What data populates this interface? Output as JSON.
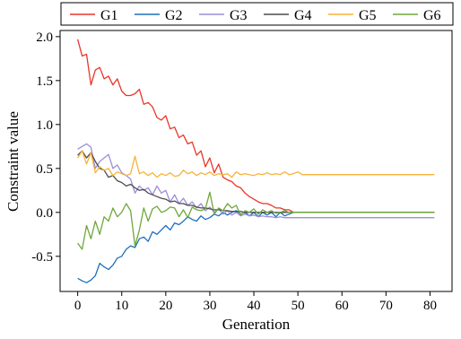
{
  "chart_data": {
    "type": "line",
    "xlabel": "Generation",
    "ylabel": "Constraint value",
    "xlim": [
      -4,
      85
    ],
    "ylim": [
      -0.9,
      2.07
    ],
    "xticks": [
      0,
      10,
      20,
      30,
      40,
      50,
      60,
      70,
      80
    ],
    "yticks": [
      -0.5,
      0.0,
      0.5,
      1.0,
      1.5,
      2.0
    ],
    "ytick_labels": [
      "-0.5",
      "0.0",
      "0.5",
      "1.0",
      "1.5",
      "2.0"
    ],
    "legend_position": "top, outside plot area",
    "grid": false,
    "series": [
      {
        "name": "G1",
        "color": "#e8372a",
        "x": [
          0,
          1,
          2,
          3,
          4,
          5,
          6,
          7,
          8,
          9,
          10,
          11,
          12,
          13,
          14,
          15,
          16,
          17,
          18,
          19,
          20,
          21,
          22,
          23,
          24,
          25,
          26,
          27,
          28,
          29,
          30,
          31,
          32,
          33,
          34,
          35,
          36,
          37,
          38,
          39,
          40,
          41,
          42,
          43,
          44,
          45,
          46,
          47,
          48,
          49,
          50,
          51,
          52,
          53,
          54,
          55,
          56,
          57,
          58,
          59,
          60,
          61,
          62,
          63,
          64,
          65,
          66,
          67,
          68,
          69,
          70,
          71,
          72,
          73,
          74,
          75,
          76,
          77,
          78,
          79,
          80,
          81
        ],
        "y": [
          1.97,
          1.78,
          1.8,
          1.45,
          1.62,
          1.65,
          1.52,
          1.55,
          1.45,
          1.52,
          1.38,
          1.33,
          1.33,
          1.35,
          1.4,
          1.23,
          1.25,
          1.2,
          1.08,
          1.05,
          1.1,
          0.95,
          0.97,
          0.85,
          0.88,
          0.78,
          0.8,
          0.65,
          0.7,
          0.52,
          0.62,
          0.45,
          0.55,
          0.4,
          0.37,
          0.35,
          0.3,
          0.28,
          0.22,
          0.18,
          0.15,
          0.12,
          0.1,
          0.1,
          0.08,
          0.05,
          0.05,
          0.03,
          0.03,
          0.0,
          0.0,
          0.0,
          0.0,
          0.0,
          0.0,
          0.0,
          0.0,
          0.0,
          0.0,
          0.0,
          0.0,
          0.0,
          0.0,
          0.0,
          0.0,
          0.0,
          0.0,
          0.0,
          0.0,
          0.0,
          0.0,
          0.0,
          0.0,
          0.0,
          0.0,
          0.0,
          0.0,
          0.0,
          0.0,
          0.0,
          0.0,
          0.0
        ]
      },
      {
        "name": "G2",
        "color": "#1f6fbd",
        "x": [
          0,
          1,
          2,
          3,
          4,
          5,
          6,
          7,
          8,
          9,
          10,
          11,
          12,
          13,
          14,
          15,
          16,
          17,
          18,
          19,
          20,
          21,
          22,
          23,
          24,
          25,
          26,
          27,
          28,
          29,
          30,
          31,
          32,
          33,
          34,
          35,
          36,
          37,
          38,
          39,
          40,
          41,
          42,
          43,
          44,
          45,
          46,
          47,
          48,
          49,
          50,
          51,
          52,
          53,
          54,
          55,
          56,
          57,
          58,
          59,
          60,
          61,
          62,
          63,
          64,
          65,
          66,
          67,
          68,
          69,
          70,
          71,
          72,
          73,
          74,
          75,
          76,
          77,
          78,
          79,
          80,
          81
        ],
        "y": [
          -0.75,
          -0.78,
          -0.8,
          -0.77,
          -0.72,
          -0.58,
          -0.62,
          -0.65,
          -0.6,
          -0.52,
          -0.5,
          -0.42,
          -0.38,
          -0.4,
          -0.3,
          -0.28,
          -0.33,
          -0.22,
          -0.25,
          -0.2,
          -0.15,
          -0.2,
          -0.12,
          -0.14,
          -0.1,
          -0.05,
          -0.08,
          -0.1,
          -0.04,
          -0.08,
          -0.06,
          -0.02,
          -0.04,
          0.0,
          -0.03,
          0.0,
          0.02,
          -0.02,
          0.0,
          -0.04,
          0.0,
          -0.05,
          0.0,
          -0.03,
          0.0,
          -0.05,
          0.0,
          -0.04,
          -0.02,
          0.0,
          0.0,
          0.0,
          0.0,
          0.0,
          0.0,
          0.0,
          0.0,
          0.0,
          0.0,
          0.0,
          0.0,
          0.0,
          0.0,
          0.0,
          0.0,
          0.0,
          0.0,
          0.0,
          0.0,
          0.0,
          0.0,
          0.0,
          0.0,
          0.0,
          0.0,
          0.0,
          0.0,
          0.0,
          0.0,
          0.0,
          0.0,
          0.0
        ]
      },
      {
        "name": "G3",
        "color": "#9a8fd8",
        "x": [
          0,
          1,
          2,
          3,
          4,
          5,
          6,
          7,
          8,
          9,
          10,
          11,
          12,
          13,
          14,
          15,
          16,
          17,
          18,
          19,
          20,
          21,
          22,
          23,
          24,
          25,
          26,
          27,
          28,
          29,
          30,
          31,
          32,
          33,
          34,
          35,
          36,
          37,
          38,
          39,
          40,
          41,
          42,
          43,
          44,
          45,
          46,
          47,
          48,
          49,
          50,
          51,
          52,
          53,
          54,
          55,
          56,
          57,
          58,
          59,
          60,
          61,
          62,
          63,
          64,
          65,
          66,
          67,
          68,
          69,
          70,
          71,
          72,
          73,
          74,
          75,
          76,
          77,
          78,
          79,
          80,
          81
        ],
        "y": [
          0.72,
          0.75,
          0.78,
          0.74,
          0.5,
          0.58,
          0.62,
          0.66,
          0.5,
          0.54,
          0.45,
          0.42,
          0.38,
          0.22,
          0.3,
          0.25,
          0.28,
          0.2,
          0.3,
          0.22,
          0.25,
          0.12,
          0.2,
          0.1,
          0.16,
          0.08,
          0.12,
          0.05,
          0.1,
          0.02,
          0.06,
          0.0,
          0.04,
          -0.02,
          0.02,
          -0.03,
          0.0,
          -0.04,
          -0.02,
          -0.04,
          -0.03,
          -0.05,
          -0.04,
          -0.05,
          -0.05,
          -0.06,
          -0.05,
          -0.06,
          -0.06,
          -0.06,
          -0.06,
          -0.06,
          -0.06,
          -0.06,
          -0.06,
          -0.06,
          -0.06,
          -0.06,
          -0.06,
          -0.06,
          -0.06,
          -0.06,
          -0.06,
          -0.06,
          -0.06,
          -0.06,
          -0.06,
          -0.06,
          -0.06,
          -0.06,
          -0.06,
          -0.06,
          -0.06,
          -0.06,
          -0.06,
          -0.06,
          -0.06,
          -0.06,
          -0.06,
          -0.06,
          -0.06,
          -0.06
        ]
      },
      {
        "name": "G4",
        "color": "#4d4d4d",
        "x": [
          0,
          1,
          2,
          3,
          4,
          5,
          6,
          7,
          8,
          9,
          10,
          11,
          12,
          13,
          14,
          15,
          16,
          17,
          18,
          19,
          20,
          21,
          22,
          23,
          24,
          25,
          26,
          27,
          28,
          29,
          30,
          31,
          32,
          33,
          34,
          35,
          36,
          37,
          38,
          39,
          40,
          41,
          42,
          43,
          44,
          45,
          46,
          47,
          48,
          49,
          50,
          51,
          52,
          53,
          54,
          55,
          56,
          57,
          58,
          59,
          60,
          61,
          62,
          63,
          64,
          65,
          66,
          67,
          68,
          69,
          70,
          71,
          72,
          73,
          74,
          75,
          76,
          77,
          78,
          79,
          80,
          81
        ],
        "y": [
          0.65,
          0.7,
          0.62,
          0.68,
          0.58,
          0.5,
          0.48,
          0.4,
          0.42,
          0.36,
          0.34,
          0.3,
          0.32,
          0.28,
          0.25,
          0.26,
          0.22,
          0.2,
          0.18,
          0.16,
          0.15,
          0.12,
          0.13,
          0.1,
          0.1,
          0.08,
          0.08,
          0.06,
          0.05,
          0.05,
          0.04,
          0.03,
          0.03,
          0.02,
          0.02,
          0.01,
          0.01,
          0.01,
          0.0,
          0.0,
          0.0,
          0.0,
          0.0,
          0.0,
          0.0,
          0.0,
          0.0,
          0.0,
          0.0,
          0.0,
          0.0,
          0.0,
          0.0,
          0.0,
          0.0,
          0.0,
          0.0,
          0.0,
          0.0,
          0.0,
          0.0,
          0.0,
          0.0,
          0.0,
          0.0,
          0.0,
          0.0,
          0.0,
          0.0,
          0.0,
          0.0,
          0.0,
          0.0,
          0.0,
          0.0,
          0.0,
          0.0,
          0.0,
          0.0,
          0.0,
          0.0,
          0.0
        ]
      },
      {
        "name": "G5",
        "color": "#f7b23a",
        "x": [
          0,
          1,
          2,
          3,
          4,
          5,
          6,
          7,
          8,
          9,
          10,
          11,
          12,
          13,
          14,
          15,
          16,
          17,
          18,
          19,
          20,
          21,
          22,
          23,
          24,
          25,
          26,
          27,
          28,
          29,
          30,
          31,
          32,
          33,
          34,
          35,
          36,
          37,
          38,
          39,
          40,
          41,
          42,
          43,
          44,
          45,
          46,
          47,
          48,
          49,
          50,
          51,
          52,
          53,
          54,
          55,
          56,
          57,
          58,
          59,
          60,
          61,
          62,
          63,
          64,
          65,
          66,
          67,
          68,
          69,
          70,
          71,
          72,
          73,
          74,
          75,
          76,
          77,
          78,
          79,
          80,
          81
        ],
        "y": [
          0.62,
          0.7,
          0.55,
          0.68,
          0.45,
          0.52,
          0.48,
          0.5,
          0.42,
          0.46,
          0.44,
          0.42,
          0.44,
          0.64,
          0.44,
          0.46,
          0.42,
          0.45,
          0.4,
          0.44,
          0.42,
          0.45,
          0.41,
          0.42,
          0.48,
          0.44,
          0.46,
          0.42,
          0.45,
          0.43,
          0.46,
          0.42,
          0.44,
          0.43,
          0.44,
          0.4,
          0.46,
          0.43,
          0.44,
          0.43,
          0.42,
          0.44,
          0.43,
          0.45,
          0.43,
          0.44,
          0.43,
          0.46,
          0.43,
          0.44,
          0.46,
          0.43,
          0.43,
          0.43,
          0.43,
          0.43,
          0.43,
          0.43,
          0.43,
          0.43,
          0.43,
          0.43,
          0.43,
          0.43,
          0.43,
          0.43,
          0.43,
          0.43,
          0.43,
          0.43,
          0.43,
          0.43,
          0.43,
          0.43,
          0.43,
          0.43,
          0.43,
          0.43,
          0.43,
          0.43,
          0.43,
          0.43
        ]
      },
      {
        "name": "G6",
        "color": "#6fa83a",
        "x": [
          0,
          1,
          2,
          3,
          4,
          5,
          6,
          7,
          8,
          9,
          10,
          11,
          12,
          13,
          14,
          15,
          16,
          17,
          18,
          19,
          20,
          21,
          22,
          23,
          24,
          25,
          26,
          27,
          28,
          29,
          30,
          31,
          32,
          33,
          34,
          35,
          36,
          37,
          38,
          39,
          40,
          41,
          42,
          43,
          44,
          45,
          46,
          47,
          48,
          49,
          50,
          51,
          52,
          53,
          54,
          55,
          56,
          57,
          58,
          59,
          60,
          61,
          62,
          63,
          64,
          65,
          66,
          67,
          68,
          69,
          70,
          71,
          72,
          73,
          74,
          75,
          76,
          77,
          78,
          79,
          80,
          81
        ],
        "y": [
          -0.35,
          -0.42,
          -0.15,
          -0.3,
          -0.1,
          -0.25,
          -0.05,
          -0.1,
          0.05,
          -0.05,
          0.0,
          0.1,
          0.02,
          -0.38,
          -0.2,
          0.05,
          -0.1,
          0.04,
          0.07,
          0.0,
          0.02,
          0.06,
          0.05,
          -0.05,
          0.03,
          -0.06,
          0.06,
          0.03,
          0.02,
          0.04,
          0.23,
          -0.02,
          0.05,
          0.02,
          0.1,
          0.05,
          0.08,
          -0.03,
          0.02,
          0.0,
          0.04,
          -0.02,
          0.03,
          0.0,
          0.02,
          -0.01,
          0.0,
          0.02,
          0.0,
          0.0,
          0.0,
          0.0,
          0.0,
          0.0,
          0.0,
          0.0,
          0.0,
          0.0,
          0.0,
          0.0,
          0.0,
          0.0,
          0.0,
          0.0,
          0.0,
          0.0,
          0.0,
          0.0,
          0.0,
          0.0,
          0.0,
          0.0,
          0.0,
          0.0,
          0.0,
          0.0,
          0.0,
          0.0,
          0.0,
          0.0,
          0.0,
          0.0
        ]
      }
    ]
  }
}
